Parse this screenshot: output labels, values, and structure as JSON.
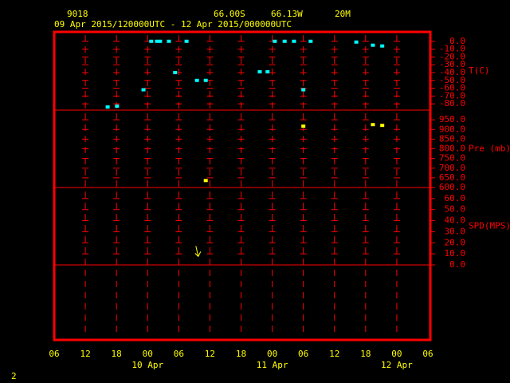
{
  "header": {
    "station": "9018",
    "lat": "66.00S",
    "lon": "66.13W",
    "elev": "20M",
    "period": "09 Apr 2015/120000UTC - 12 Apr 2015/000000UTC"
  },
  "page_number": "2",
  "chart_data": {
    "type": "scatter",
    "xlim": [
      0,
      72
    ],
    "xticks": [
      {
        "value": 0,
        "label": "06"
      },
      {
        "value": 6,
        "label": "12"
      },
      {
        "value": 12,
        "label": "18"
      },
      {
        "value": 18,
        "label": "00"
      },
      {
        "value": 24,
        "label": "06"
      },
      {
        "value": 30,
        "label": "12"
      },
      {
        "value": 36,
        "label": "18"
      },
      {
        "value": 42,
        "label": "00"
      },
      {
        "value": 48,
        "label": "06"
      },
      {
        "value": 54,
        "label": "12"
      },
      {
        "value": 60,
        "label": "18"
      },
      {
        "value": 66,
        "label": "00"
      },
      {
        "value": 72,
        "label": "06"
      }
    ],
    "date_labels": [
      {
        "value": 18,
        "label": "10 Apr"
      },
      {
        "value": 42,
        "label": "11 Apr"
      },
      {
        "value": 66,
        "label": "12 Apr"
      }
    ],
    "panels": [
      {
        "ylabel": "T(C)",
        "ylim": [
          -88,
          12
        ],
        "yticks": [
          {
            "value": 0,
            "label": "0.0"
          },
          {
            "value": -10,
            "label": "-10.0"
          },
          {
            "value": -20,
            "label": "-20.0"
          },
          {
            "value": -30,
            "label": "-30.0"
          },
          {
            "value": -40,
            "label": "-40.0"
          },
          {
            "value": -50,
            "label": "-50.0"
          },
          {
            "value": -60,
            "label": "-60.0"
          },
          {
            "value": -70,
            "label": "-70.0"
          },
          {
            "value": -80,
            "label": "-80.0"
          }
        ],
        "marker": "dot",
        "color": "#00ffff",
        "x": [
          10.3,
          12.1,
          17.2,
          18.7,
          19.8,
          20.4,
          22.1,
          23.3,
          25.5,
          27.5,
          29.2,
          39.6,
          41.1,
          42.5,
          44.4,
          46.2,
          48.0,
          49.4,
          58.2,
          61.4,
          63.2
        ],
        "values": [
          -84,
          -83,
          -62,
          0,
          0,
          0,
          0,
          -40,
          0,
          -50,
          -50,
          -39,
          -39,
          0,
          0,
          0,
          -62,
          0,
          -1,
          -5,
          -6
        ]
      },
      {
        "ylabel": "Pre (mb)",
        "ylim": [
          600,
          1000
        ],
        "yticks": [
          {
            "value": 950,
            "label": "950.0"
          },
          {
            "value": 900,
            "label": "900.0"
          },
          {
            "value": 850,
            "label": "850.0"
          },
          {
            "value": 800,
            "label": "800.0"
          },
          {
            "value": 750,
            "label": "750.0"
          },
          {
            "value": 700,
            "label": "700.0"
          },
          {
            "value": 650,
            "label": "650.0"
          },
          {
            "value": 600,
            "label": "600.0"
          }
        ],
        "marker": "dot",
        "color": "#ffff00",
        "x": [
          29.2,
          48.0,
          61.4,
          63.2
        ],
        "values": [
          636,
          917,
          925,
          921
        ]
      },
      {
        "ylabel": "SPD(MPS)",
        "ylim": [
          0,
          70
        ],
        "yticks": [
          {
            "value": 60,
            "label": "60.0"
          },
          {
            "value": 50,
            "label": "50.0"
          },
          {
            "value": 40,
            "label": "40.0"
          },
          {
            "value": 30,
            "label": "30.0"
          },
          {
            "value": 20,
            "label": "20.0"
          },
          {
            "value": 10,
            "label": "10.0"
          },
          {
            "value": 0,
            "label": "0.0"
          }
        ],
        "marker": "arrow",
        "color": "#ffff00",
        "x": [
          27.6
        ],
        "values": [
          12
        ]
      }
    ]
  }
}
